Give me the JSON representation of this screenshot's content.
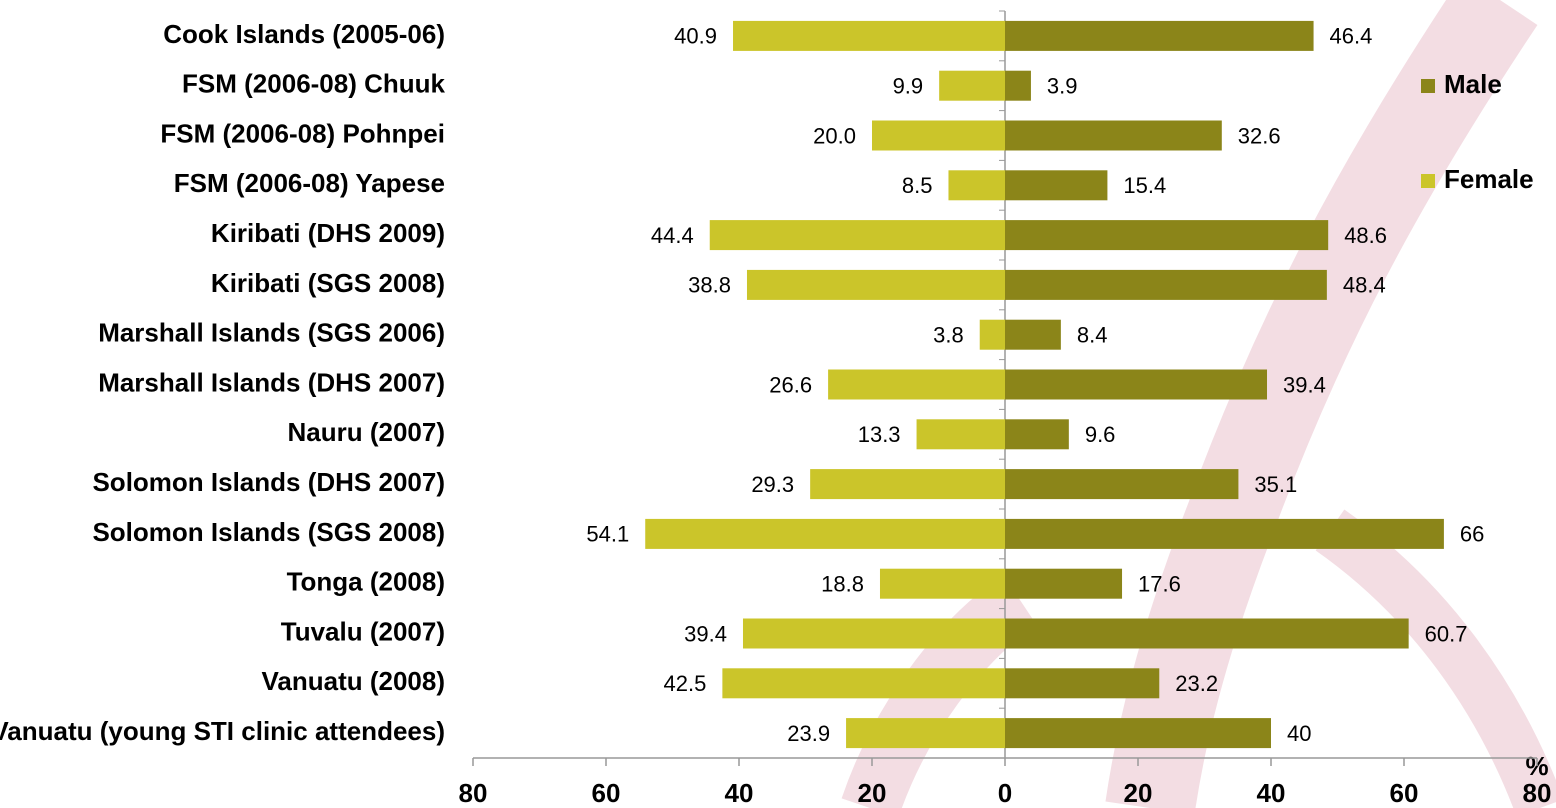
{
  "chart_data": {
    "type": "butterfly",
    "xlabel": "%",
    "categories": [
      "Cook Islands (2005-06)",
      "FSM (2006-08) Chuuk",
      "FSM (2006-08) Pohnpei",
      "FSM (2006-08) Yapese",
      "Kiribati (DHS 2009)",
      "Kiribati (SGS 2008)",
      "Marshall Islands (SGS 2006)",
      "Marshall Islands (DHS 2007)",
      "Nauru (2007)",
      "Solomon Islands (DHS 2007)",
      "Solomon Islands (SGS 2008)",
      "Tonga (2008)",
      "Tuvalu (2007)",
      "Vanuatu (2008)",
      "Vanuatu (young STI clinic attendees)"
    ],
    "series": [
      {
        "name": "Male",
        "color": "#8b8519",
        "values": [
          46.4,
          3.9,
          32.6,
          15.4,
          48.6,
          48.4,
          8.4,
          39.4,
          9.6,
          35.1,
          66,
          17.6,
          60.7,
          23.2,
          40
        ]
      },
      {
        "name": "Female",
        "color": "#cbc52a",
        "axis": "x2",
        "values": [
          40.9,
          9.9,
          20.0,
          8.5,
          44.4,
          38.8,
          3.8,
          26.6,
          13.3,
          29.3,
          54.1,
          18.8,
          39.4,
          42.5,
          23.9
        ],
        "value_labels": [
          "40.9",
          "9.9",
          "20.0",
          "8.5",
          "44.4",
          "38.8",
          "3.8",
          "26.6",
          "13.3",
          "29.3",
          "54.1",
          "18.8",
          "39.4",
          "42.5",
          "23.9"
        ]
      }
    ],
    "xlim": [
      0,
      80
    ],
    "xticks": [
      0,
      20,
      40,
      60,
      80
    ],
    "x2lim": [
      80,
      0
    ],
    "x2ticks": [
      80,
      60,
      40,
      20
    ]
  }
}
